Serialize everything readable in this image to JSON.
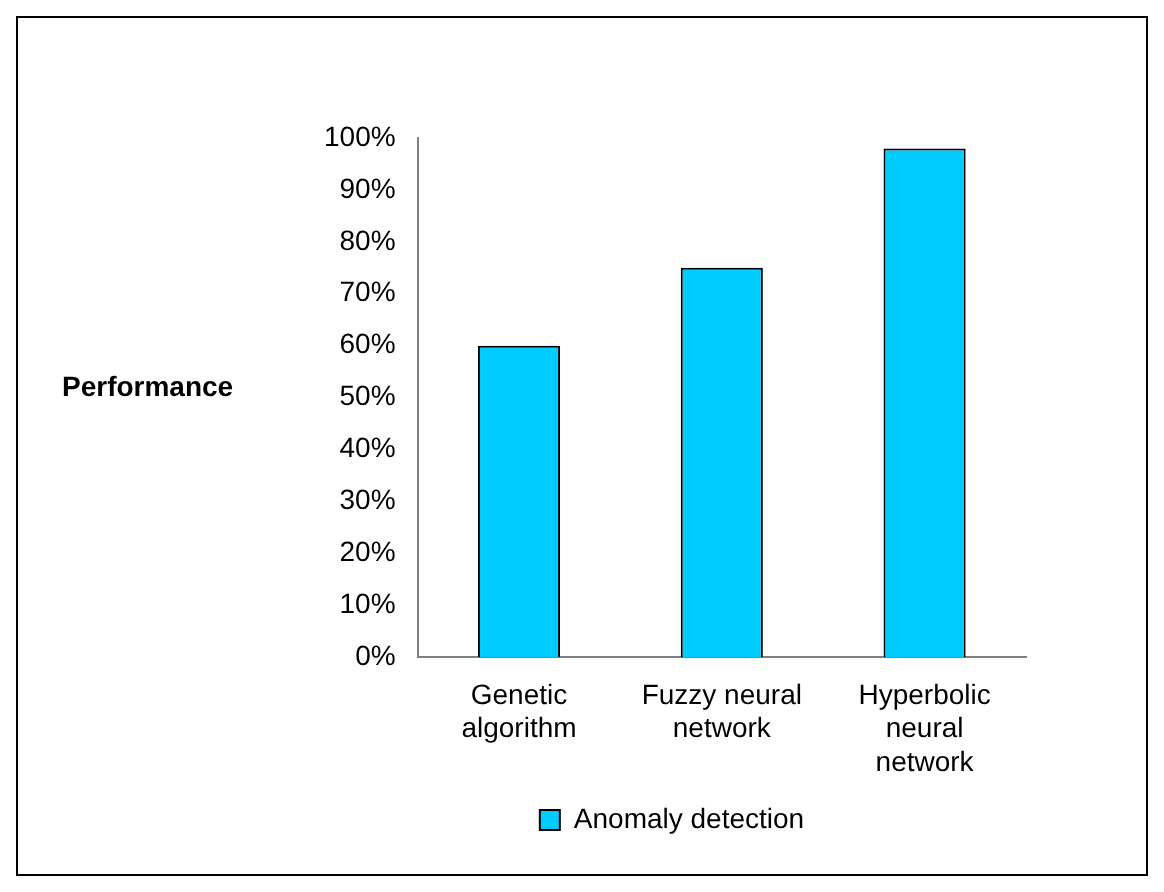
{
  "chart_data": {
    "type": "bar",
    "ylabel": "Performance",
    "categories": [
      "Genetic algorithm",
      "Fuzzy neural network",
      "Hyperbolic neural network"
    ],
    "series": [
      {
        "name": "Anomaly detection",
        "color": "#00ccff",
        "values": [
          60,
          75,
          98
        ]
      }
    ],
    "ylim": [
      0,
      100
    ],
    "yticks": [
      {
        "value": 0,
        "label": "0%"
      },
      {
        "value": 10,
        "label": "10%"
      },
      {
        "value": 20,
        "label": "20%"
      },
      {
        "value": 30,
        "label": "30%"
      },
      {
        "value": 40,
        "label": "40%"
      },
      {
        "value": 50,
        "label": "50%"
      },
      {
        "value": 60,
        "label": "60%"
      },
      {
        "value": 70,
        "label": "70%"
      },
      {
        "value": 80,
        "label": "80%"
      },
      {
        "value": 90,
        "label": "90%"
      },
      {
        "value": 100,
        "label": "100%"
      }
    ],
    "grid": false,
    "legend": "bottom"
  }
}
